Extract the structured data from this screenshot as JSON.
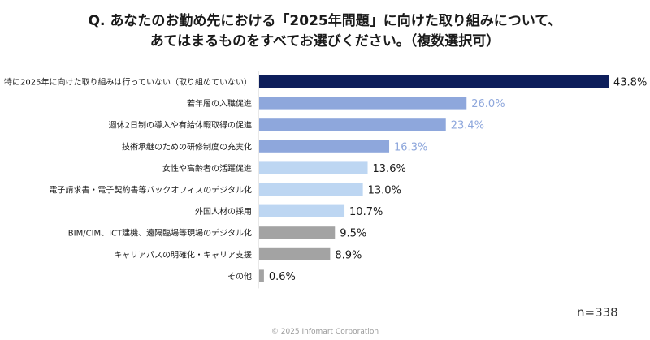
{
  "header": {
    "title_line1": "Q. あなたのお勤め先における「2025年問題」に向けた取り組みについて、",
    "title_line2": "あてはまるものをすべてお選びください。（複数選択可）"
  },
  "chart_data": {
    "type": "bar",
    "orientation": "horizontal",
    "categories": [
      "特に2025年に向けた取り組みは行っていない（取り組めていない）",
      "若年層の入職促進",
      "週休2日制の導入や有給休暇取得の促進",
      "技術承継のための研修制度の充実化",
      "女性や高齢者の活躍促進",
      "電子請求書・電子契約書等バックオフィスのデジタル化",
      "外国人材の採用",
      "BIM/CIM、ICT建機、遠隔臨場等現場のデジタル化",
      "キャリアパスの明確化・キャリア支援",
      "その他"
    ],
    "values": [
      43.8,
      26.0,
      23.4,
      16.3,
      13.6,
      13.0,
      10.7,
      9.5,
      8.9,
      0.6
    ],
    "value_labels": [
      "43.8%",
      "26.0%",
      "23.4%",
      "16.3%",
      "13.6%",
      "13.0%",
      "10.7%",
      "9.5%",
      "8.9%",
      "0.6%"
    ],
    "bar_colors": [
      "#0d1e5b",
      "#8ea7dc",
      "#8ea7dc",
      "#8ea7dc",
      "#bdd6f2",
      "#bdd6f2",
      "#bdd6f2",
      "#a3a3a3",
      "#a3a3a3",
      "#a3a3a3"
    ],
    "label_colors": [
      "#1a1a1a",
      "#8ea7dc",
      "#8ea7dc",
      "#8ea7dc",
      "#1a1a1a",
      "#1a1a1a",
      "#1a1a1a",
      "#1a1a1a",
      "#1a1a1a",
      "#1a1a1a"
    ],
    "xlim": [
      0,
      43.8
    ]
  },
  "sample": {
    "n_label": "n=338"
  },
  "footer": {
    "copyright": "© 2025 Infomart Corporation"
  }
}
